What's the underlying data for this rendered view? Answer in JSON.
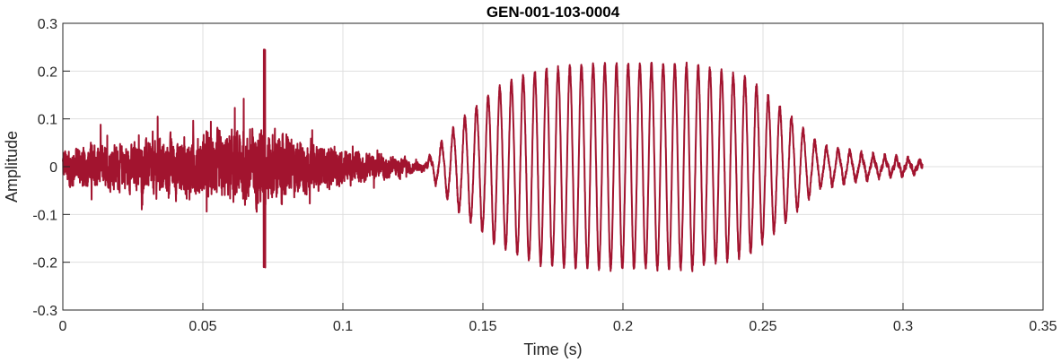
{
  "chart_data": {
    "type": "line",
    "title": "GEN-001-103-0004",
    "xlabel": "Time (s)",
    "ylabel": "Amplitude",
    "xlim": [
      0,
      0.35
    ],
    "ylim": [
      -0.3,
      0.3
    ],
    "xticks": [
      0,
      0.05,
      0.1,
      0.15,
      0.2,
      0.25,
      0.3,
      0.35
    ],
    "xtick_labels": [
      "0",
      "0.05",
      "0.1",
      "0.15",
      "0.2",
      "0.25",
      "0.3",
      "0.35"
    ],
    "yticks": [
      -0.3,
      -0.2,
      -0.1,
      0,
      0.1,
      0.2,
      0.3
    ],
    "ytick_labels": [
      "-0.3",
      "-0.2",
      "-0.1",
      "0",
      "0.1",
      "0.2",
      "0.3"
    ],
    "grid": true,
    "series": [
      {
        "color": "#A2142F",
        "duration": 0.307,
        "noise_segment": {
          "t_start": 0,
          "t_end": 0.13,
          "peak": {
            "t": 0.072,
            "value": 0.24
          },
          "min": {
            "t": 0.072,
            "value": -0.215
          }
        },
        "tone_segment": {
          "t_start": 0.13,
          "t_end": 0.307,
          "frequency_hz": 240
        },
        "envelope": [
          [
            0,
            0.07
          ],
          [
            0.02,
            0.08
          ],
          [
            0.04,
            0.1
          ],
          [
            0.06,
            0.12
          ],
          [
            0.072,
            0.14
          ],
          [
            0.085,
            0.09
          ],
          [
            0.1,
            0.06
          ],
          [
            0.12,
            0.03
          ],
          [
            0.13,
            0.01
          ],
          [
            0.14,
            0.08
          ],
          [
            0.155,
            0.16
          ],
          [
            0.17,
            0.2
          ],
          [
            0.19,
            0.21
          ],
          [
            0.225,
            0.21
          ],
          [
            0.245,
            0.18
          ],
          [
            0.26,
            0.1
          ],
          [
            0.27,
            0.04
          ],
          [
            0.29,
            0.02
          ],
          [
            0.307,
            0.01
          ]
        ]
      }
    ]
  }
}
